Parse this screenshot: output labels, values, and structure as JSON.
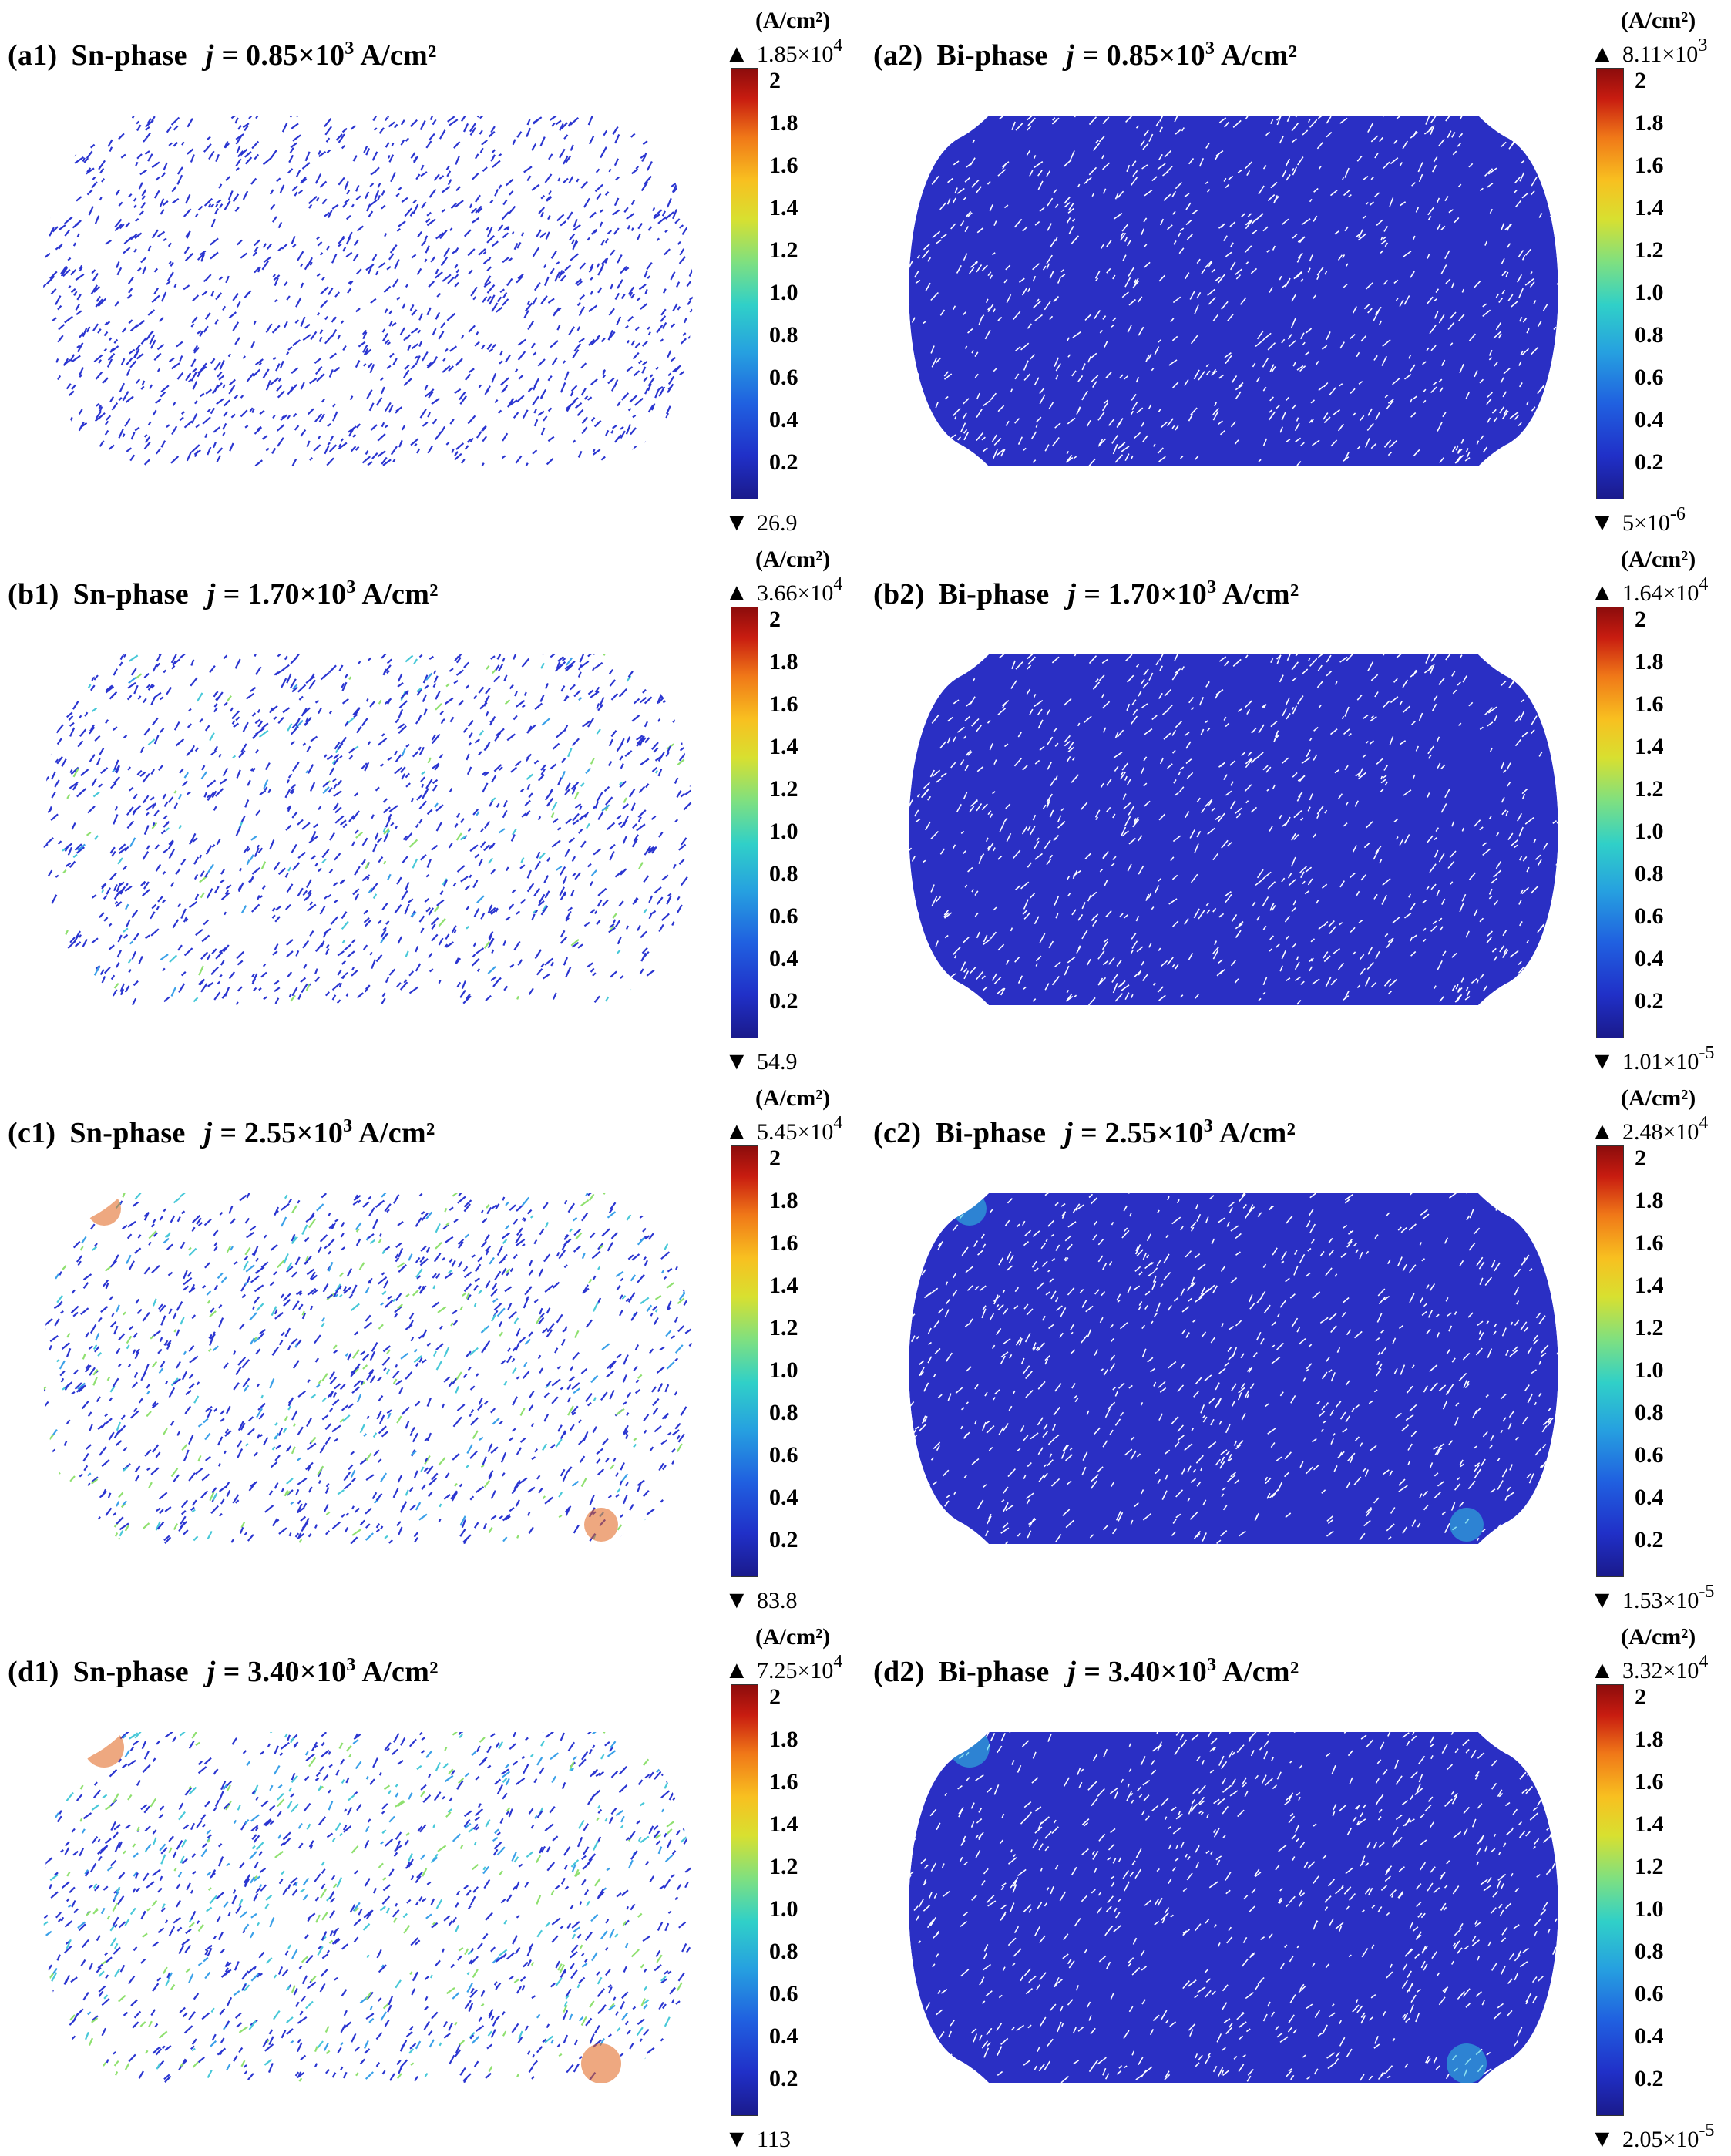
{
  "unit_label": "(A/cm²)",
  "colorbar_ticks": [
    "2",
    "1.8",
    "1.6",
    "1.4",
    "1.2",
    "1.0",
    "0.8",
    "0.6",
    "0.4",
    "0.2"
  ],
  "colormap": [
    "#1a1a8c",
    "#2060e0",
    "#30d0c8",
    "#d8e030",
    "#f07818",
    "#8c0c0c"
  ],
  "panels": [
    {
      "id": "(a1)",
      "phase": "Sn-phase",
      "j_label": "j =",
      "j_value": "0.85×10",
      "j_exp": "3",
      "j_unit": "A/cm²",
      "max_base": "1.85×10",
      "max_exp": "4",
      "min_base": "26.9",
      "min_exp": ""
    },
    {
      "id": "(a2)",
      "phase": "Bi-phase",
      "j_label": "j =",
      "j_value": "0.85×10",
      "j_exp": "3",
      "j_unit": "A/cm²",
      "max_base": "8.11×10",
      "max_exp": "3",
      "min_base": "5×10",
      "min_exp": "-6"
    },
    {
      "id": "(b1)",
      "phase": "Sn-phase",
      "j_label": "j =",
      "j_value": "1.70×10",
      "j_exp": "3",
      "j_unit": "A/cm²",
      "max_base": "3.66×10",
      "max_exp": "4",
      "min_base": "54.9",
      "min_exp": ""
    },
    {
      "id": "(b2)",
      "phase": "Bi-phase",
      "j_label": "j =",
      "j_value": "1.70×10",
      "j_exp": "3",
      "j_unit": "A/cm²",
      "max_base": "1.64×10",
      "max_exp": "4",
      "min_base": "1.01×10",
      "min_exp": "-5"
    },
    {
      "id": "(c1)",
      "phase": "Sn-phase",
      "j_label": "j =",
      "j_value": "2.55×10",
      "j_exp": "3",
      "j_unit": "A/cm²",
      "max_base": "5.45×10",
      "max_exp": "4",
      "min_base": "83.8",
      "min_exp": ""
    },
    {
      "id": "(c2)",
      "phase": "Bi-phase",
      "j_label": "j =",
      "j_value": "2.55×10",
      "j_exp": "3",
      "j_unit": "A/cm²",
      "max_base": "2.48×10",
      "max_exp": "4",
      "min_base": "1.53×10",
      "min_exp": "-5"
    },
    {
      "id": "(d1)",
      "phase": "Sn-phase",
      "j_label": "j =",
      "j_value": "3.40×10",
      "j_exp": "3",
      "j_unit": "A/cm²",
      "max_base": "7.25×10",
      "max_exp": "4",
      "min_base": "113",
      "min_exp": ""
    },
    {
      "id": "(d2)",
      "phase": "Bi-phase",
      "j_label": "j =",
      "j_value": "3.40×10",
      "j_exp": "3",
      "j_unit": "A/cm²",
      "max_base": "3.32×10",
      "max_exp": "4",
      "min_base": "2.05×10",
      "min_exp": "-5"
    }
  ]
}
